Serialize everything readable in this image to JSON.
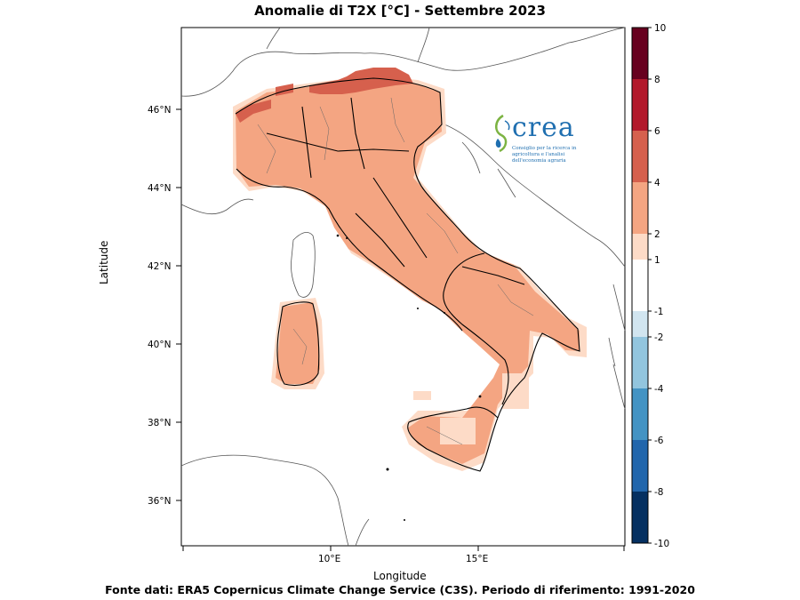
{
  "title": "Anomalie di T2X  [°C] - Settembre 2023",
  "footer": "Fonte dati: ERA5 Copernicus Climate Change Service (C3S). Periodo di riferimento: 1991-2020",
  "axes": {
    "xlabel": "Longitude",
    "ylabel": "Latitude",
    "xticks": [
      "10°E",
      "15°E"
    ],
    "yticks": [
      "46°N",
      "44°N",
      "42°N",
      "40°N",
      "38°N",
      "36°N"
    ]
  },
  "colorbar": {
    "levels": [
      10,
      8,
      6,
      4,
      2,
      1,
      -1,
      -2,
      -4,
      -6,
      -8,
      -10
    ],
    "labels": [
      "10",
      "8",
      "6",
      "4",
      "2",
      "1",
      "-1",
      "-2",
      "-4",
      "-6",
      "-8",
      "-10"
    ],
    "colors": [
      "#67001f",
      "#b2182b",
      "#d6604d",
      "#f4a582",
      "#fddbc7",
      "#ffffff",
      "#d1e5f0",
      "#92c5de",
      "#4393c3",
      "#2166ac",
      "#053061"
    ]
  },
  "logo": {
    "word": "crea",
    "subtitle": "Consiglio per la ricerca in agricoltura e l'analisi dell'economia agraria"
  },
  "colors": {
    "high": "#d6604d",
    "main": "#f4a582",
    "light": "#fddbc7",
    "border_country": "#000000",
    "border_coast": "#555555"
  }
}
